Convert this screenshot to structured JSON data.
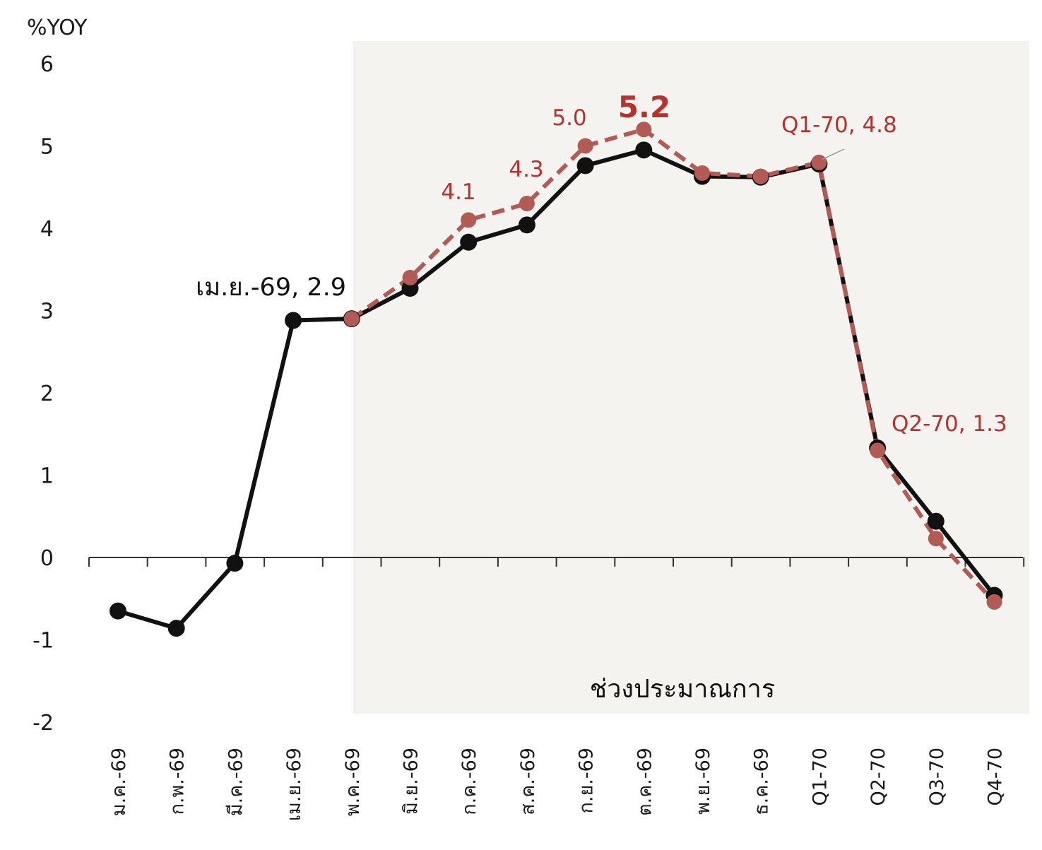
{
  "chart_data": {
    "type": "line",
    "ylabel": "%YOY",
    "ylim": [
      -2,
      6
    ],
    "yticks": [
      "6",
      "5",
      "4",
      "3",
      "2",
      "1",
      "0",
      "-1",
      "-2"
    ],
    "categories": [
      "ม.ค.-69",
      "ก.พ.-69",
      "มี.ค.-69",
      "เม.ย.-69",
      "พ.ค.-69",
      "มิ.ย.-69",
      "ก.ค.-69",
      "ส.ค.-69",
      "ก.ย.-69",
      "ต.ค.-69",
      "พ.ย.-69",
      "ธ.ค.-69",
      "Q1-70",
      "Q2-70",
      "Q3-70",
      "Q4-70"
    ],
    "series": [
      {
        "values": [
          -0.65,
          -0.86,
          -0.07,
          2.88,
          2.9,
          3.27,
          3.83,
          4.04,
          4.76,
          4.95,
          4.63,
          4.62,
          4.78,
          1.33,
          0.44,
          -0.46
        ],
        "color": "#111111",
        "style": "solid"
      },
      {
        "values": [
          null,
          null,
          null,
          null,
          2.9,
          3.4,
          4.1,
          4.3,
          5.0,
          5.2,
          4.67,
          4.63,
          4.8,
          1.3,
          0.23,
          -0.54
        ],
        "color": "#b25a55",
        "style": "dashed"
      }
    ],
    "shaded_region": {
      "from_category": "พ.ค.-69",
      "label": "ช่วงประมาณการ",
      "color": "#f5f3ef"
    },
    "annotations": [
      {
        "text": "เม.ย.-69, 2.9",
        "color": "#111111"
      },
      {
        "text": "4.1",
        "color": "#b5332f"
      },
      {
        "text": "4.3",
        "color": "#b5332f"
      },
      {
        "text": "5.0",
        "color": "#b5332f"
      },
      {
        "text": "5.2",
        "color": "#b5332f",
        "bold": true
      },
      {
        "text": "Q1-70, 4.8",
        "color": "#b5332f"
      },
      {
        "text": "Q2-70, 1.3",
        "color": "#b5332f"
      }
    ]
  }
}
